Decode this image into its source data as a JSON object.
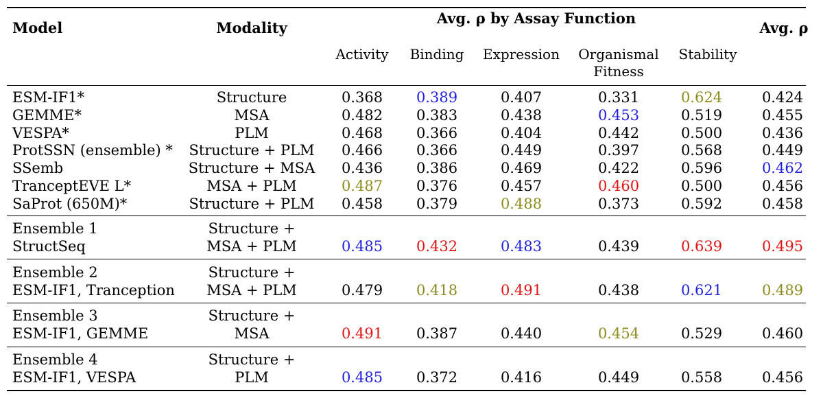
{
  "header": {
    "model": "Model",
    "modality": "Modality",
    "group_title": "Avg. ρ  by Assay Function",
    "avg": "Avg. ρ",
    "sub_columns": [
      "Activity",
      "Binding",
      "Expression",
      "Organismal",
      "Fitness",
      "Stability"
    ]
  },
  "colors": {
    "blue": "#1f1fe0",
    "red": "#e01414",
    "olive": "#8c8c1e"
  },
  "rows": [
    {
      "model": "ESM-IF1*",
      "modality": "Structure",
      "v": [
        "0.368",
        "0.389",
        "0.407",
        "0.331",
        "0.624",
        "0.424"
      ]
    },
    {
      "model": "GEMME*",
      "modality": "MSA",
      "v": [
        "0.482",
        "0.383",
        "0.438",
        "0.453",
        "0.519",
        "0.455"
      ]
    },
    {
      "model": "VESPA*",
      "modality": "PLM",
      "v": [
        "0.468",
        "0.366",
        "0.404",
        "0.442",
        "0.500",
        "0.436"
      ]
    },
    {
      "model": "ProtSSN (ensemble) *",
      "modality": "Structure + PLM",
      "v": [
        "0.466",
        "0.366",
        "0.449",
        "0.397",
        "0.568",
        "0.449"
      ]
    },
    {
      "model": "SSemb",
      "modality": "Structure + MSA",
      "v": [
        "0.436",
        "0.386",
        "0.469",
        "0.422",
        "0.596",
        "0.462"
      ]
    },
    {
      "model": "TranceptEVE L*",
      "modality": "MSA + PLM",
      "v": [
        "0.487",
        "0.376",
        "0.457",
        "0.460",
        "0.500",
        "0.456"
      ]
    },
    {
      "model": "SaProt (650M)*",
      "modality": "Structure + PLM",
      "v": [
        "0.458",
        "0.379",
        "0.488",
        "0.373",
        "0.592",
        "0.458"
      ]
    }
  ],
  "ensembles": [
    {
      "name": "Ensemble 1",
      "members": "StructSeq",
      "mod1": "Structure +",
      "mod2": "MSA + PLM",
      "v": [
        "0.485",
        "0.432",
        "0.483",
        "0.439",
        "0.639",
        "0.495"
      ]
    },
    {
      "name": "Ensemble 2",
      "members": "ESM-IF1, Tranception",
      "mod1": "Structure +",
      "mod2": "MSA + PLM",
      "v": [
        "0.479",
        "0.418",
        "0.491",
        "0.438",
        "0.621",
        "0.489"
      ]
    },
    {
      "name": "Ensemble 3",
      "members": "ESM-IF1, GEMME",
      "mod1": "Structure +",
      "mod2": "MSA",
      "v": [
        "0.491",
        "0.387",
        "0.440",
        "0.454",
        "0.529",
        "0.460"
      ]
    },
    {
      "name": "Ensemble 4",
      "members": "ESM-IF1, VESPA",
      "mod1": "Structure +",
      "mod2": "PLM",
      "v": [
        "0.485",
        "0.372",
        "0.416",
        "0.449",
        "0.558",
        "0.456"
      ]
    }
  ]
}
